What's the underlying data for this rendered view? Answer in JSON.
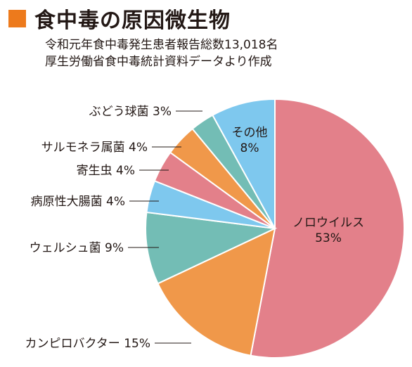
{
  "header": {
    "title": "食中毒の原因微生物",
    "subtitle_line1": "令和元年食中毒発生患者報告総数13,018名",
    "subtitle_line2": "厚生労働省食中毒統計資料データより作成",
    "accent_color": "#ED7A1C"
  },
  "chart_data": {
    "type": "pie",
    "title": "食中毒の原因微生物",
    "start": "12 o'clock",
    "direction": "clockwise",
    "slices": [
      {
        "name": "ノロウイルス",
        "value": 53,
        "label": "53%",
        "color": "#E3808A",
        "label_style": "inside"
      },
      {
        "name": "カンピロバクター",
        "value": 15,
        "label": "カンピロバクター 15%",
        "color": "#F0984A",
        "label_style": "outside"
      },
      {
        "name": "ウェルシュ菌",
        "value": 9,
        "label": "ウェルシュ菌 9%",
        "color": "#73BDB5",
        "label_style": "outside"
      },
      {
        "name": "病原性大腸菌",
        "value": 4,
        "label": "病原性大腸菌 4%",
        "color": "#7EC8EE",
        "label_style": "outside"
      },
      {
        "name": "寄生虫",
        "value": 4,
        "label": "寄生虫 4%",
        "color": "#E3808A",
        "label_style": "outside"
      },
      {
        "name": "サルモネラ属菌",
        "value": 4,
        "label": "サルモネラ属菌 4%",
        "color": "#F0984A",
        "label_style": "outside"
      },
      {
        "name": "ぶどう球菌",
        "value": 3,
        "label": "ぶどう球菌 3%",
        "color": "#73BDB5",
        "label_style": "outside"
      },
      {
        "name": "その他",
        "value": 8,
        "label": "8%",
        "color": "#7EC8EE",
        "label_style": "inside"
      }
    ]
  }
}
